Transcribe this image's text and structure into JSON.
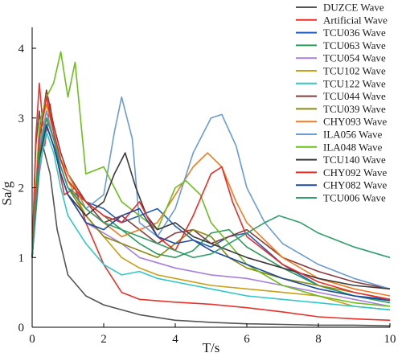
{
  "chart_data": {
    "type": "line",
    "title": "",
    "xlabel": "T/s",
    "ylabel": "Sa/g",
    "xlim": [
      0,
      10
    ],
    "ylim": [
      0,
      4.3
    ],
    "xticks": [
      "0",
      "2",
      "4",
      "6",
      "8",
      "10"
    ],
    "yticks": [
      "0",
      "1",
      "2",
      "3",
      "4"
    ],
    "grid": false,
    "legend_position": "top-right",
    "series": [
      {
        "name": "DUZCE Wave",
        "color": "#555555",
        "x": [
          0,
          0.1,
          0.2,
          0.3,
          0.5,
          0.7,
          1,
          1.5,
          2,
          3,
          4,
          5,
          6,
          7,
          8,
          9,
          10
        ],
        "y": [
          1.0,
          2.6,
          3.1,
          2.6,
          2.2,
          1.4,
          0.75,
          0.45,
          0.32,
          0.18,
          0.1,
          0.07,
          0.05,
          0.04,
          0.03,
          0.03,
          0.02
        ]
      },
      {
        "name": "Artificial Wave",
        "color": "#e8322a",
        "x": [
          0,
          0.1,
          0.2,
          0.35,
          0.5,
          0.7,
          0.9,
          1.2,
          1.5,
          2,
          2.5,
          3,
          4,
          5,
          6,
          7,
          8,
          9,
          10
        ],
        "y": [
          1.0,
          2.7,
          3.5,
          2.6,
          3.2,
          2.4,
          1.9,
          2.0,
          1.5,
          0.9,
          0.5,
          0.4,
          0.36,
          0.33,
          0.28,
          0.22,
          0.15,
          0.12,
          0.1
        ]
      },
      {
        "name": "TCU036 Wave",
        "color": "#1f5fbf",
        "x": [
          0,
          0.2,
          0.4,
          0.6,
          0.8,
          1,
          1.5,
          2,
          2.5,
          3,
          3.5,
          4,
          4.5,
          5,
          5.5,
          6,
          7,
          8,
          9,
          10
        ],
        "y": [
          1.0,
          2.5,
          2.9,
          2.6,
          2.3,
          2.0,
          1.8,
          1.7,
          1.5,
          1.6,
          1.7,
          1.45,
          1.25,
          1.15,
          1.3,
          1.35,
          0.9,
          0.6,
          0.45,
          0.4
        ]
      },
      {
        "name": "TCU063 Wave",
        "color": "#2a9a58",
        "x": [
          0,
          0.2,
          0.4,
          0.6,
          0.8,
          1,
          1.5,
          2,
          2.5,
          3,
          3.5,
          4,
          4.5,
          5,
          5.5,
          6,
          7,
          8,
          9,
          10
        ],
        "y": [
          1.0,
          2.4,
          3.0,
          2.7,
          2.4,
          2.1,
          1.8,
          1.6,
          1.4,
          1.2,
          1.05,
          1.0,
          1.1,
          1.35,
          1.4,
          1.15,
          0.85,
          0.6,
          0.45,
          0.35
        ]
      },
      {
        "name": "TCU054 Wave",
        "color": "#a67fe0",
        "x": [
          0,
          0.2,
          0.4,
          0.6,
          0.8,
          1,
          1.5,
          2,
          2.5,
          3,
          4,
          5,
          6,
          7,
          8,
          9,
          10
        ],
        "y": [
          1.0,
          2.2,
          2.9,
          2.6,
          2.2,
          1.9,
          1.5,
          1.35,
          1.2,
          1.0,
          0.85,
          0.75,
          0.7,
          0.6,
          0.5,
          0.4,
          0.3
        ]
      },
      {
        "name": "TCU102 Wave",
        "color": "#c9a016",
        "x": [
          0,
          0.2,
          0.4,
          0.6,
          0.8,
          1,
          1.5,
          2,
          2.5,
          3,
          3.5,
          4,
          5,
          6,
          7,
          8,
          9,
          10
        ],
        "y": [
          1.0,
          2.6,
          3.1,
          2.7,
          2.4,
          2.1,
          1.6,
          1.3,
          1.0,
          0.85,
          0.75,
          0.7,
          0.6,
          0.55,
          0.5,
          0.45,
          0.3,
          0.25
        ]
      },
      {
        "name": "TCU122 Wave",
        "color": "#2fc8c8",
        "x": [
          0,
          0.2,
          0.4,
          0.6,
          0.8,
          1,
          1.5,
          2,
          2.5,
          3,
          3.5,
          4,
          5,
          6,
          7,
          8,
          9,
          10
        ],
        "y": [
          1.0,
          2.3,
          2.8,
          2.5,
          2.0,
          1.6,
          1.2,
          0.9,
          0.75,
          0.8,
          0.7,
          0.65,
          0.55,
          0.45,
          0.4,
          0.35,
          0.3,
          0.25
        ]
      },
      {
        "name": "TCU044 Wave",
        "color": "#8b3a3a",
        "x": [
          0,
          0.2,
          0.4,
          0.6,
          0.8,
          1,
          1.5,
          2,
          2.5,
          3,
          3.5,
          4,
          4.5,
          5,
          5.5,
          6,
          7,
          8,
          9,
          10
        ],
        "y": [
          1.0,
          2.7,
          3.4,
          2.9,
          2.5,
          2.2,
          1.8,
          1.5,
          1.6,
          1.4,
          1.2,
          1.35,
          1.4,
          1.2,
          1.3,
          1.4,
          1.0,
          0.8,
          0.65,
          0.55
        ]
      },
      {
        "name": "TCU039 Wave",
        "color": "#8a8a10",
        "x": [
          0,
          0.2,
          0.4,
          0.6,
          0.8,
          1,
          1.5,
          2,
          2.5,
          3,
          3.5,
          4,
          4.5,
          5,
          5.5,
          6,
          7,
          8,
          9,
          10
        ],
        "y": [
          1.0,
          2.5,
          3.0,
          2.7,
          2.3,
          2.0,
          1.6,
          1.3,
          1.2,
          1.1,
          1.0,
          1.2,
          1.4,
          1.3,
          1.0,
          0.85,
          0.7,
          0.6,
          0.5,
          0.4
        ]
      },
      {
        "name": "CHY093 Wave",
        "color": "#f07a1e",
        "x": [
          0,
          0.2,
          0.4,
          0.6,
          0.8,
          1,
          1.5,
          2,
          2.5,
          3,
          3.5,
          4,
          4.5,
          4.9,
          5.3,
          5.7,
          6,
          7,
          8,
          9,
          10
        ],
        "y": [
          1.0,
          2.8,
          3.2,
          2.8,
          2.4,
          2.2,
          1.7,
          1.5,
          1.3,
          1.4,
          1.5,
          1.9,
          2.3,
          2.5,
          2.3,
          1.8,
          1.5,
          1.0,
          0.7,
          0.55,
          0.45
        ]
      },
      {
        "name": "ILA056 Wave",
        "color": "#6a9bd4",
        "x": [
          0,
          0.2,
          0.4,
          0.6,
          0.8,
          1,
          1.5,
          2,
          2.3,
          2.5,
          2.8,
          3,
          3.5,
          4,
          4.5,
          5,
          5.3,
          5.7,
          6,
          6.5,
          7,
          8,
          9,
          10
        ],
        "y": [
          1.0,
          2.6,
          3.1,
          2.7,
          2.3,
          2.0,
          1.7,
          1.9,
          2.8,
          3.3,
          2.7,
          1.5,
          1.3,
          1.7,
          2.5,
          3.0,
          3.05,
          2.6,
          2.0,
          1.5,
          1.2,
          0.9,
          0.7,
          0.55
        ]
      },
      {
        "name": "ILA048 Wave",
        "color": "#6cbf1a",
        "x": [
          0,
          0.2,
          0.4,
          0.6,
          0.8,
          1,
          1.2,
          1.5,
          2,
          2.5,
          3,
          3.5,
          4,
          4.3,
          4.7,
          5,
          6,
          7,
          8,
          9,
          10
        ],
        "y": [
          1.0,
          2.9,
          3.3,
          3.5,
          3.95,
          3.3,
          3.8,
          2.2,
          2.3,
          1.8,
          1.6,
          1.4,
          2.0,
          2.1,
          1.9,
          1.5,
          0.9,
          0.6,
          0.45,
          0.35,
          0.3
        ]
      },
      {
        "name": "TCU140 Wave",
        "color": "#3a3a3a",
        "x": [
          0,
          0.2,
          0.4,
          0.6,
          0.8,
          1,
          1.5,
          2,
          2.3,
          2.6,
          2.9,
          3.2,
          3.5,
          4,
          4.5,
          5,
          6,
          7,
          8,
          9,
          10
        ],
        "y": [
          1.0,
          2.4,
          2.9,
          2.6,
          2.2,
          1.9,
          1.6,
          1.8,
          2.2,
          2.5,
          2.0,
          1.6,
          1.4,
          1.5,
          1.3,
          1.2,
          1.0,
          0.85,
          0.7,
          0.6,
          0.55
        ]
      },
      {
        "name": "CHY092 Wave",
        "color": "#ee2a24",
        "x": [
          0,
          0.2,
          0.4,
          0.6,
          0.8,
          1,
          1.5,
          2,
          2.5,
          3,
          3.5,
          4,
          4.5,
          5,
          5.3,
          5.6,
          6,
          7,
          8,
          9,
          10
        ],
        "y": [
          1.0,
          2.7,
          3.3,
          2.8,
          2.4,
          2.1,
          1.8,
          1.6,
          1.5,
          1.8,
          1.3,
          1.1,
          1.6,
          2.2,
          2.3,
          1.8,
          1.3,
          0.9,
          0.65,
          0.5,
          0.4
        ]
      },
      {
        "name": "CHY082 Wave",
        "color": "#1c4aa0",
        "x": [
          0,
          0.2,
          0.4,
          0.6,
          0.8,
          1,
          1.5,
          2,
          2.5,
          3,
          3.5,
          4,
          4.5,
          5,
          5.5,
          6,
          7,
          8,
          9,
          10
        ],
        "y": [
          1.0,
          2.5,
          2.9,
          2.6,
          2.2,
          1.9,
          1.5,
          1.4,
          1.6,
          1.7,
          1.3,
          1.2,
          1.25,
          1.1,
          1.0,
          0.9,
          0.7,
          0.55,
          0.45,
          0.38
        ]
      },
      {
        "name": "TCU006 Wave",
        "color": "#2e9e6a",
        "x": [
          0,
          0.2,
          0.4,
          0.6,
          0.8,
          1,
          1.5,
          2,
          2.5,
          3,
          3.5,
          4,
          4.5,
          5,
          5.5,
          6,
          6.5,
          6.9,
          7.5,
          8,
          9,
          10
        ],
        "y": [
          1.0,
          2.5,
          3.0,
          2.7,
          2.3,
          2.0,
          1.7,
          1.5,
          1.4,
          1.3,
          1.2,
          1.1,
          1.0,
          1.05,
          1.2,
          1.35,
          1.5,
          1.6,
          1.5,
          1.35,
          1.15,
          1.0
        ]
      }
    ]
  }
}
